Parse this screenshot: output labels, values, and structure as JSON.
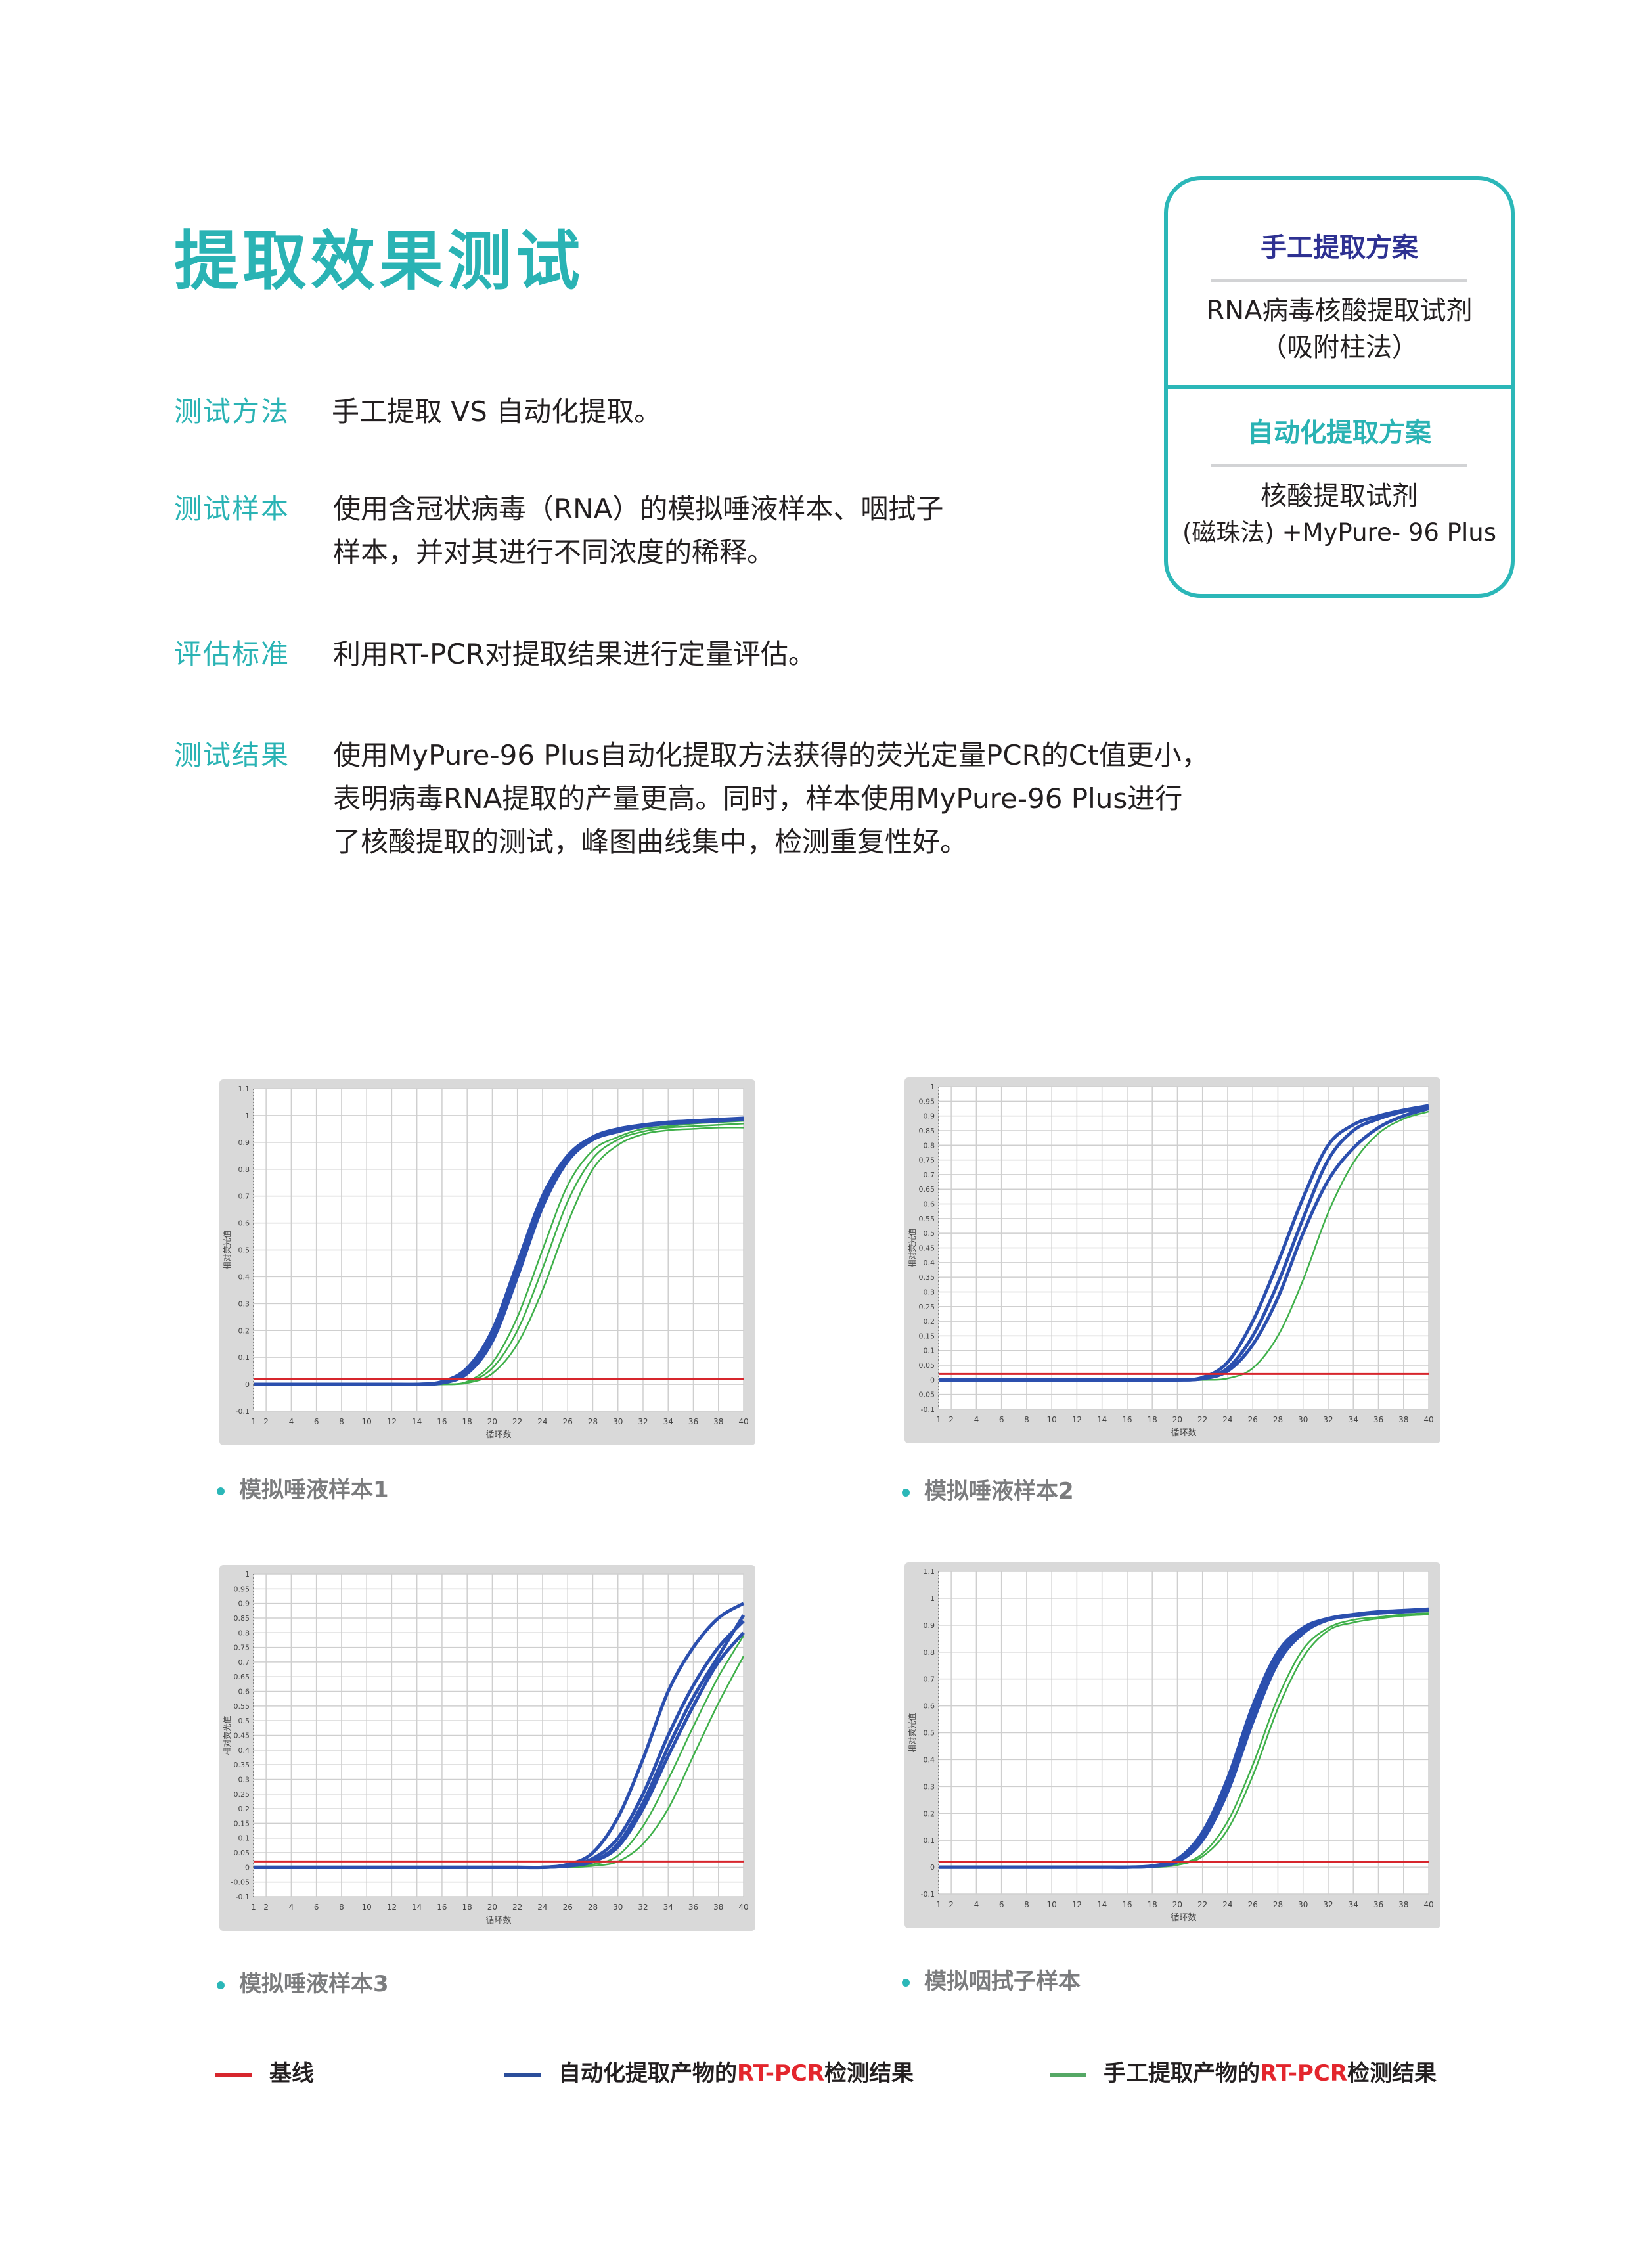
{
  "page_title": "提取效果测试",
  "sections": [
    {
      "label": "测试方法",
      "lines": [
        "手工提取 VS 自动化提取。"
      ]
    },
    {
      "label": "测试样本",
      "lines": [
        "使用含冠状病毒（RNA）的模拟唾液样本、咽拭子",
        "样本，并对其进行不同浓度的稀释。"
      ]
    },
    {
      "label": "评估标准",
      "lines": [
        "利用RT-PCR对提取结果进行定量评估。"
      ]
    },
    {
      "label": "测试结果",
      "lines": [
        "使用MyPure-96 Plus自动化提取方法获得的荧光定量PCR的Ct值更小，",
        "表明病毒RNA提取的产量更高。同时，样本使用MyPure-96 Plus进行",
        "了核酸提取的测试，峰图曲线集中，检测重复性好。"
      ]
    }
  ],
  "comparison_box": {
    "manual": {
      "title": "手工提取方案",
      "lines": [
        "RNA病毒核酸提取试剂",
        "（吸附柱法）"
      ],
      "color": "#2e3192"
    },
    "automated": {
      "title": "自动化提取方案",
      "lines": [
        "核酸提取试剂",
        "(磁珠法) +MyPure- 96 Plus"
      ],
      "color": "#2ab3b4"
    }
  },
  "legend": {
    "baseline": {
      "label": "基线",
      "color": "#d7262d"
    },
    "automated": {
      "prefix": "自动化提取产物的",
      "highlight": "RT-PCR",
      "suffix": "检测结果",
      "color": "#2b4e9b"
    },
    "manual": {
      "prefix": "手工提取产物的",
      "highlight": "RT-PCR",
      "suffix": "检测结果",
      "color": "#55a865"
    }
  },
  "chart_data": [
    {
      "type": "line",
      "caption": "模拟唾液样本1",
      "xlabel": "循环数",
      "ylabel": "相对荧光值",
      "xlim": [
        1,
        40
      ],
      "ylim": [
        -0.1,
        1.1
      ],
      "x_ticks": [
        "1",
        "2",
        "4",
        "6",
        "8",
        "10",
        "12",
        "14",
        "16",
        "18",
        "20",
        "22",
        "24",
        "26",
        "28",
        "30",
        "32",
        "34",
        "36",
        "38",
        "40"
      ],
      "y_ticks": [
        "-0.1",
        "0",
        "0.1",
        "0.2",
        "0.3",
        "0.4",
        "0.5",
        "0.6",
        "0.7",
        "0.8",
        "0.9",
        "1",
        "1.1"
      ],
      "grid": true,
      "threshold": 0.02,
      "x": [
        1,
        2,
        4,
        6,
        8,
        10,
        12,
        14,
        16,
        18,
        20,
        22,
        24,
        26,
        28,
        30,
        32,
        34,
        36,
        38,
        40
      ],
      "series": [
        {
          "group": "automated",
          "values": [
            0,
            0,
            0,
            0,
            0,
            0,
            0,
            0,
            0.01,
            0.06,
            0.2,
            0.45,
            0.7,
            0.85,
            0.92,
            0.95,
            0.965,
            0.975,
            0.98,
            0.985,
            0.99
          ]
        },
        {
          "group": "automated",
          "values": [
            0,
            0,
            0,
            0,
            0,
            0,
            0,
            0,
            0.008,
            0.05,
            0.18,
            0.43,
            0.68,
            0.84,
            0.915,
            0.945,
            0.962,
            0.972,
            0.978,
            0.984,
            0.988
          ]
        },
        {
          "group": "automated",
          "values": [
            0,
            0,
            0,
            0,
            0,
            0,
            0,
            0,
            0.005,
            0.04,
            0.16,
            0.4,
            0.66,
            0.83,
            0.91,
            0.94,
            0.96,
            0.97,
            0.975,
            0.98,
            0.985
          ]
        },
        {
          "group": "manual",
          "values": [
            0,
            0,
            0,
            0,
            0,
            0,
            0,
            0,
            0,
            0.01,
            0.08,
            0.25,
            0.5,
            0.74,
            0.87,
            0.92,
            0.95,
            0.96,
            0.97,
            0.975,
            0.98
          ]
        },
        {
          "group": "manual",
          "values": [
            0,
            0,
            0,
            0,
            0,
            0,
            0,
            0,
            0,
            0.008,
            0.06,
            0.2,
            0.43,
            0.68,
            0.84,
            0.91,
            0.94,
            0.955,
            0.96,
            0.965,
            0.97
          ]
        },
        {
          "group": "manual",
          "values": [
            0,
            0,
            0,
            0,
            0,
            0,
            0,
            0,
            0,
            0.005,
            0.04,
            0.15,
            0.35,
            0.6,
            0.8,
            0.89,
            0.93,
            0.945,
            0.95,
            0.955,
            0.955
          ]
        }
      ]
    },
    {
      "type": "line",
      "caption": "模拟唾液样本2",
      "xlabel": "循环数",
      "ylabel": "相对荧光值",
      "xlim": [
        1,
        40
      ],
      "ylim": [
        -0.1,
        1
      ],
      "x_ticks": [
        "1",
        "2",
        "4",
        "6",
        "8",
        "10",
        "12",
        "14",
        "16",
        "18",
        "20",
        "22",
        "24",
        "26",
        "28",
        "30",
        "32",
        "34",
        "36",
        "38",
        "40"
      ],
      "y_ticks": [
        "-0.1",
        "-0.05",
        "0",
        "0.05",
        "0.1",
        "0.15",
        "0.2",
        "0.25",
        "0.3",
        "0.35",
        "0.4",
        "0.45",
        "0.5",
        "0.55",
        "0.6",
        "0.65",
        "0.7",
        "0.75",
        "0.8",
        "0.85",
        "0.9",
        "0.95",
        "1"
      ],
      "grid": true,
      "threshold": 0.02,
      "x": [
        1,
        2,
        4,
        6,
        8,
        10,
        12,
        14,
        16,
        18,
        20,
        22,
        24,
        26,
        28,
        30,
        32,
        34,
        36,
        38,
        40
      ],
      "series": [
        {
          "group": "automated",
          "values": [
            0,
            0,
            0,
            0,
            0,
            0,
            0,
            0,
            0,
            0,
            0,
            0.008,
            0.06,
            0.2,
            0.4,
            0.62,
            0.8,
            0.87,
            0.9,
            0.92,
            0.935
          ]
        },
        {
          "group": "automated",
          "values": [
            0,
            0,
            0,
            0,
            0,
            0,
            0,
            0,
            0,
            0,
            0,
            0.005,
            0.04,
            0.15,
            0.33,
            0.55,
            0.75,
            0.85,
            0.89,
            0.915,
            0.93
          ]
        },
        {
          "group": "automated",
          "values": [
            0,
            0,
            0,
            0,
            0,
            0,
            0,
            0,
            0,
            0,
            0,
            0.004,
            0.03,
            0.12,
            0.28,
            0.5,
            0.68,
            0.79,
            0.86,
            0.9,
            0.925
          ]
        },
        {
          "group": "manual",
          "values": [
            0,
            0,
            0,
            0,
            0,
            0,
            0,
            0,
            0,
            0,
            0,
            0,
            0.005,
            0.04,
            0.15,
            0.34,
            0.57,
            0.74,
            0.84,
            0.89,
            0.915
          ]
        }
      ]
    },
    {
      "type": "line",
      "caption": "模拟唾液样本3",
      "xlabel": "循环数",
      "ylabel": "相对荧光值",
      "xlim": [
        1,
        40
      ],
      "ylim": [
        -0.1,
        1
      ],
      "x_ticks": [
        "1",
        "2",
        "4",
        "6",
        "8",
        "10",
        "12",
        "14",
        "16",
        "18",
        "20",
        "22",
        "24",
        "26",
        "28",
        "30",
        "32",
        "34",
        "36",
        "38",
        "40"
      ],
      "y_ticks": [
        "-0.1",
        "-0.05",
        "0",
        "0.05",
        "0.1",
        "0.15",
        "0.2",
        "0.25",
        "0.3",
        "0.35",
        "0.4",
        "0.45",
        "0.5",
        "0.55",
        "0.6",
        "0.65",
        "0.7",
        "0.75",
        "0.8",
        "0.85",
        "0.9",
        "0.95",
        "1"
      ],
      "grid": true,
      "threshold": 0.02,
      "x": [
        1,
        2,
        4,
        6,
        8,
        10,
        12,
        14,
        16,
        18,
        20,
        22,
        24,
        26,
        28,
        30,
        32,
        34,
        36,
        38,
        40
      ],
      "series": [
        {
          "group": "automated",
          "values": [
            0,
            0,
            0,
            0,
            0,
            0,
            0,
            0,
            0,
            0,
            0,
            0,
            0,
            0.01,
            0.05,
            0.17,
            0.37,
            0.6,
            0.75,
            0.85,
            0.9
          ]
        },
        {
          "group": "automated",
          "values": [
            0,
            0,
            0,
            0,
            0,
            0,
            0,
            0,
            0,
            0,
            0,
            0,
            0,
            0.006,
            0.03,
            0.1,
            0.25,
            0.45,
            0.62,
            0.75,
            0.84
          ]
        },
        {
          "group": "automated",
          "values": [
            0,
            0,
            0,
            0,
            0,
            0,
            0,
            0,
            0,
            0,
            0,
            0,
            0,
            0.005,
            0.02,
            0.08,
            0.22,
            0.41,
            0.58,
            0.72,
            0.86
          ]
        },
        {
          "group": "automated",
          "values": [
            0,
            0,
            0,
            0,
            0,
            0,
            0,
            0,
            0,
            0,
            0,
            0,
            0,
            0.004,
            0.02,
            0.07,
            0.2,
            0.38,
            0.55,
            0.7,
            0.8
          ]
        },
        {
          "group": "manual",
          "values": [
            0,
            0,
            0,
            0,
            0,
            0,
            0,
            0,
            0,
            0,
            0,
            0,
            0,
            0,
            0.01,
            0.04,
            0.14,
            0.3,
            0.48,
            0.65,
            0.79
          ]
        },
        {
          "group": "manual",
          "values": [
            0,
            0,
            0,
            0,
            0,
            0,
            0,
            0,
            0,
            0,
            0,
            0,
            0,
            0,
            0.005,
            0.02,
            0.08,
            0.2,
            0.38,
            0.56,
            0.72
          ]
        }
      ]
    },
    {
      "type": "line",
      "caption": "模拟咽拭子样本",
      "xlabel": "循环数",
      "ylabel": "相对荧光值",
      "xlim": [
        1,
        40
      ],
      "ylim": [
        -0.1,
        1.1
      ],
      "x_ticks": [
        "1",
        "2",
        "4",
        "6",
        "8",
        "10",
        "12",
        "14",
        "16",
        "18",
        "20",
        "22",
        "24",
        "26",
        "28",
        "30",
        "32",
        "34",
        "36",
        "38",
        "40"
      ],
      "y_ticks": [
        "-0.1",
        "0",
        "0.1",
        "0.2",
        "0.3",
        "0.4",
        "0.5",
        "0.6",
        "0.7",
        "0.8",
        "0.9",
        "1",
        "1.1"
      ],
      "grid": true,
      "threshold": 0.02,
      "x": [
        1,
        2,
        4,
        6,
        8,
        10,
        12,
        14,
        16,
        18,
        20,
        22,
        24,
        26,
        28,
        30,
        32,
        34,
        36,
        38,
        40
      ],
      "series": [
        {
          "group": "automated",
          "values": [
            0,
            0,
            0,
            0,
            0,
            0,
            0,
            0,
            0,
            0.005,
            0.03,
            0.13,
            0.33,
            0.6,
            0.8,
            0.89,
            0.925,
            0.94,
            0.95,
            0.955,
            0.96
          ]
        },
        {
          "group": "automated",
          "values": [
            0,
            0,
            0,
            0,
            0,
            0,
            0,
            0,
            0,
            0.004,
            0.025,
            0.11,
            0.3,
            0.57,
            0.78,
            0.88,
            0.92,
            0.937,
            0.947,
            0.952,
            0.957
          ]
        },
        {
          "group": "automated",
          "values": [
            0,
            0,
            0,
            0,
            0,
            0,
            0,
            0,
            0,
            0.003,
            0.02,
            0.1,
            0.28,
            0.54,
            0.76,
            0.87,
            0.92,
            0.935,
            0.945,
            0.95,
            0.955
          ]
        },
        {
          "group": "manual",
          "values": [
            0,
            0,
            0,
            0,
            0,
            0,
            0,
            0,
            0,
            0,
            0.01,
            0.05,
            0.17,
            0.38,
            0.63,
            0.81,
            0.89,
            0.92,
            0.93,
            0.94,
            0.945
          ]
        },
        {
          "group": "manual",
          "values": [
            0,
            0,
            0,
            0,
            0,
            0,
            0,
            0,
            0,
            0,
            0.008,
            0.04,
            0.14,
            0.34,
            0.59,
            0.78,
            0.88,
            0.91,
            0.925,
            0.935,
            0.94
          ]
        }
      ]
    }
  ]
}
